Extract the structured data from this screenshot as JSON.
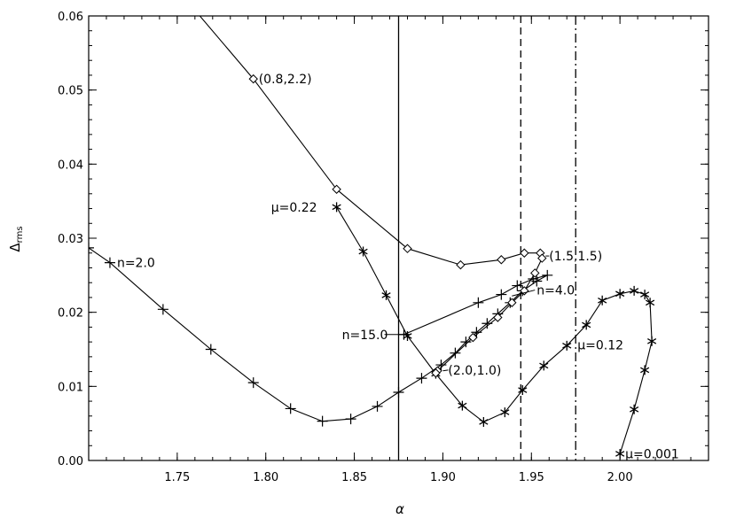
{
  "chart_data": {
    "type": "line",
    "xlabel": "α",
    "ylabel": "Δ",
    "ylabel_sub": "rms",
    "xlim": [
      1.7,
      2.05
    ],
    "ylim": [
      0.0,
      0.06
    ],
    "x_ticks": [
      "1.75",
      "1.80",
      "1.85",
      "1.90",
      "1.95",
      "2.00"
    ],
    "x_tick_values": [
      1.75,
      1.8,
      1.85,
      1.9,
      1.95,
      2.0
    ],
    "y_ticks": [
      "0.00",
      "0.01",
      "0.02",
      "0.03",
      "0.04",
      "0.05",
      "0.06"
    ],
    "y_tick_values": [
      0.0,
      0.01,
      0.02,
      0.03,
      0.04,
      0.05,
      0.06
    ],
    "grid": false,
    "vlines": [
      {
        "x": 1.875,
        "style": "solid"
      },
      {
        "x": 1.944,
        "style": "dashed"
      },
      {
        "x": 1.975,
        "style": "dashdot"
      }
    ],
    "series": [
      {
        "marker": "plus",
        "points": [
          [
            1.7,
            0.0287
          ],
          [
            1.712,
            0.0267
          ],
          [
            1.742,
            0.0204
          ],
          [
            1.769,
            0.015
          ],
          [
            1.793,
            0.0105
          ],
          [
            1.814,
            0.007
          ],
          [
            1.832,
            0.0053
          ],
          [
            1.848,
            0.0056
          ],
          [
            1.863,
            0.0073
          ],
          [
            1.875,
            0.0092
          ],
          [
            1.888,
            0.0111
          ],
          [
            1.899,
            0.0129
          ],
          [
            1.907,
            0.0145
          ],
          [
            1.913,
            0.016
          ],
          [
            1.919,
            0.0173
          ],
          [
            1.925,
            0.0185
          ],
          [
            1.931,
            0.0198
          ],
          [
            1.938,
            0.0213
          ],
          [
            1.945,
            0.0229
          ],
          [
            1.953,
            0.0242
          ],
          [
            1.959,
            0.025
          ],
          [
            1.951,
            0.0245
          ],
          [
            1.942,
            0.0236
          ],
          [
            1.933,
            0.0224
          ],
          [
            1.92,
            0.0213
          ],
          [
            1.878,
            0.017
          ]
        ]
      },
      {
        "marker": "asterisk",
        "points": [
          [
            1.84,
            0.0342
          ],
          [
            1.855,
            0.0282
          ],
          [
            1.868,
            0.0223
          ],
          [
            1.88,
            0.0168
          ],
          [
            1.896,
            0.0117
          ],
          [
            1.911,
            0.0074
          ],
          [
            1.923,
            0.0052
          ],
          [
            1.935,
            0.0065
          ],
          [
            1.945,
            0.0095
          ],
          [
            1.957,
            0.0128
          ],
          [
            1.97,
            0.0155
          ],
          [
            1.981,
            0.0183
          ],
          [
            1.99,
            0.0216
          ],
          [
            2.0,
            0.0225
          ],
          [
            2.008,
            0.0229
          ],
          [
            2.014,
            0.0224
          ],
          [
            2.017,
            0.0213
          ],
          [
            2.018,
            0.0161
          ],
          [
            2.014,
            0.0122
          ],
          [
            2.008,
            0.0069
          ],
          [
            2.0,
            0.0009
          ]
        ]
      },
      {
        "marker": "diamond",
        "points": [
          [
            1.745,
            0.065
          ],
          [
            1.793,
            0.0515
          ],
          [
            1.84,
            0.0366
          ],
          [
            1.88,
            0.0286
          ],
          [
            1.91,
            0.0264
          ],
          [
            1.933,
            0.0271
          ],
          [
            1.946,
            0.028
          ],
          [
            1.955,
            0.028
          ],
          [
            1.956,
            0.0273
          ],
          [
            1.952,
            0.0253
          ],
          [
            1.946,
            0.0229
          ],
          [
            1.939,
            0.0213
          ],
          [
            1.931,
            0.0193
          ],
          [
            1.917,
            0.0166
          ],
          [
            1.897,
            0.0121
          ],
          [
            1.896,
            0.0118
          ]
        ]
      }
    ],
    "annotations": [
      {
        "text": "(0.8,2.2)",
        "x": 1.796,
        "y": 0.0515
      },
      {
        "text": "μ=0.22",
        "x": 1.803,
        "y": 0.0342
      },
      {
        "text": "n=2.0",
        "x": 1.716,
        "y": 0.0267
      },
      {
        "text": "(1.5,1.5)",
        "x": 1.96,
        "y": 0.0276
      },
      {
        "text": "n=4.0",
        "x": 1.953,
        "y": 0.023
      },
      {
        "text": "n=15.0",
        "x": 1.843,
        "y": 0.017
      },
      {
        "text": "(2.0,1.0)",
        "x": 1.903,
        "y": 0.0122
      },
      {
        "text": "μ=0.12",
        "x": 1.976,
        "y": 0.0156
      },
      {
        "text": "μ=0.001",
        "x": 2.003,
        "y": 0.0009
      }
    ],
    "leaders": [
      {
        "from": [
          1.939,
          0.0222
        ],
        "to": [
          1.952,
          0.023
        ]
      },
      {
        "from": [
          1.867,
          0.017
        ],
        "to": [
          1.878,
          0.017
        ]
      },
      {
        "from": [
          1.9,
          0.0121
        ],
        "to": [
          1.903,
          0.0122
        ]
      },
      {
        "from": [
          1.958,
          0.0276
        ],
        "to": [
          1.96,
          0.0276
        ]
      }
    ]
  }
}
